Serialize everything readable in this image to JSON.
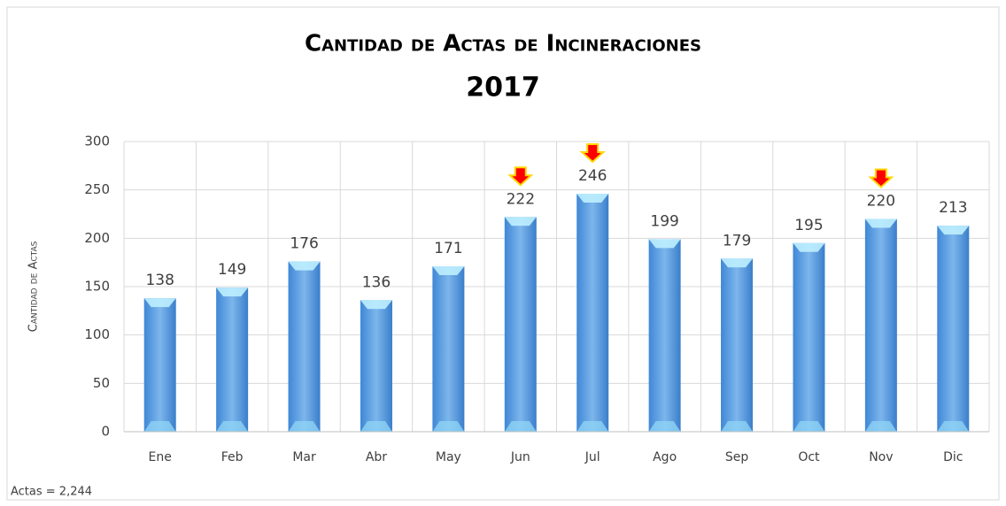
{
  "chart_data": {
    "type": "bar",
    "title": "Cantidad de Actas de Incineraciones",
    "subtitle": "2017",
    "y_label": "Cantidad de Actas",
    "annotation": "Actas = 2,244",
    "categories": [
      "Ene",
      "Feb",
      "Mar",
      "Abr",
      "May",
      "Jun",
      "Jul",
      "Ago",
      "Sep",
      "Oct",
      "Nov",
      "Dic"
    ],
    "values": [
      138,
      149,
      176,
      136,
      171,
      222,
      246,
      199,
      179,
      195,
      220,
      213
    ],
    "color": "#5b9bd5",
    "highlighted": [
      "Jun",
      "Jul",
      "Nov"
    ],
    "ylim": [
      0,
      300
    ],
    "yticks": [
      0,
      50,
      100,
      150,
      200,
      250,
      300
    ],
    "grid": true
  }
}
